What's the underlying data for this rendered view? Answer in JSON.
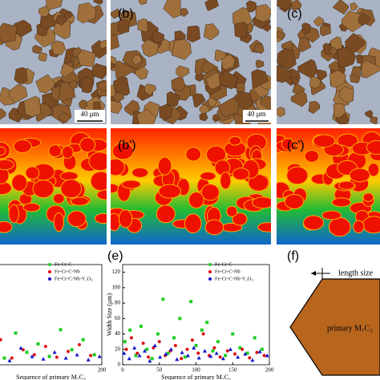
{
  "figure": {
    "panels": {
      "b": "(b)",
      "c": "(c)",
      "b2": "(b')",
      "c2": "(c')",
      "e": "(e)",
      "f": "(f)"
    },
    "scale_bar": "40 μm",
    "diagram": {
      "length": "length size",
      "shape": "primary M₇C₃"
    }
  },
  "chart_data": [
    {
      "type": "scatter",
      "xlabel": "Sequence of primary M₇C₃",
      "xlim": [
        0,
        200
      ],
      "ylim": [
        0,
        120
      ],
      "xticks": [
        200
      ],
      "yticks": [],
      "series": [
        {
          "name": "Fe-Cr-C",
          "color": "#22cc22",
          "x": [
            10,
            25,
            40,
            55,
            70,
            85,
            100,
            115,
            130,
            145,
            160,
            175,
            190
          ],
          "values": [
            30,
            12,
            45,
            20,
            8,
            38,
            15,
            25,
            10,
            42,
            18,
            30,
            12
          ]
        },
        {
          "name": "Fe-Cr-C-Nb",
          "color": "#dd1111",
          "x": [
            5,
            20,
            35,
            50,
            65,
            80,
            95,
            110,
            125,
            140,
            155,
            170,
            185
          ],
          "values": [
            20,
            10,
            25,
            14,
            30,
            8,
            18,
            12,
            22,
            9,
            16,
            24,
            11
          ]
        },
        {
          "name": "Fe-Cr-C-Nb-Y₂O₃",
          "color": "#1111cc",
          "x": [
            2,
            17,
            32,
            47,
            62,
            77,
            92,
            107,
            122,
            137,
            152,
            167,
            182,
            197
          ],
          "values": [
            12,
            6,
            18,
            9,
            14,
            5,
            20,
            10,
            7,
            15,
            8,
            12,
            6,
            10
          ]
        }
      ]
    },
    {
      "type": "scatter",
      "ylabel": "Width Size (μm)",
      "xlabel": "Sequence of primary M₇C₃",
      "xlim": [
        0,
        200
      ],
      "ylim": [
        0,
        130
      ],
      "xticks": [
        0,
        50,
        100,
        150,
        200
      ],
      "yticks": [
        0,
        20,
        40,
        60,
        80,
        100,
        120
      ],
      "series": [
        {
          "name": "Fe-Cr-C",
          "color": "#22cc22",
          "x": [
            3,
            10,
            18,
            25,
            33,
            40,
            48,
            55,
            62,
            70,
            78,
            85,
            93,
            100,
            108,
            115,
            123,
            130,
            140,
            150,
            160,
            170,
            180,
            190
          ],
          "values": [
            30,
            45,
            12,
            50,
            20,
            8,
            40,
            85,
            15,
            35,
            60,
            10,
            82,
            25,
            45,
            55,
            18,
            30,
            12,
            40,
            22,
            15,
            35,
            20
          ]
        },
        {
          "name": "Fe-Cr-C-Nb",
          "color": "#dd1111",
          "x": [
            5,
            12,
            20,
            28,
            35,
            42,
            50,
            58,
            65,
            72,
            80,
            88,
            95,
            103,
            110,
            118,
            125,
            133,
            143,
            153,
            163,
            173,
            183,
            193
          ],
          "values": [
            20,
            35,
            15,
            28,
            10,
            22,
            30,
            12,
            18,
            25,
            8,
            20,
            32,
            15,
            40,
            12,
            22,
            10,
            18,
            14,
            20,
            9,
            16,
            12
          ]
        },
        {
          "name": "Fe-Cr-C-Nb-Y₂O₃",
          "color": "#1111cc",
          "x": [
            2,
            9,
            16,
            23,
            30,
            37,
            44,
            51,
            59,
            66,
            74,
            81,
            89,
            97,
            104,
            112,
            120,
            128,
            137,
            147,
            157,
            167,
            177,
            187,
            197
          ],
          "values": [
            15,
            8,
            22,
            12,
            18,
            5,
            25,
            10,
            14,
            20,
            7,
            16,
            12,
            22,
            9,
            18,
            11,
            15,
            8,
            20,
            10,
            14,
            6,
            17,
            12
          ]
        }
      ]
    }
  ]
}
